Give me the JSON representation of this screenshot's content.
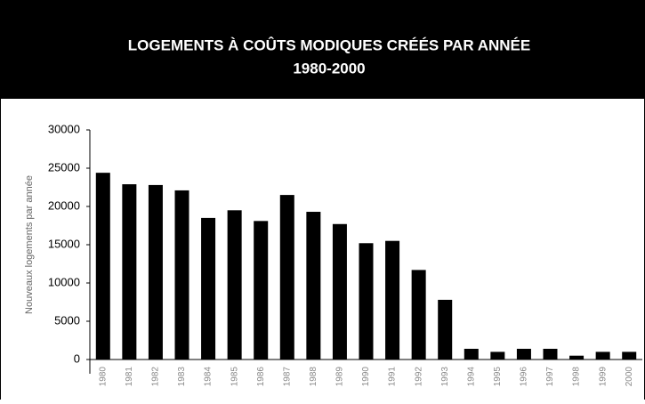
{
  "chart_data": {
    "type": "bar",
    "title": "LOGEMENTS À COÛTS MODIQUES CRÉÉS PAR ANNÉE",
    "subtitle": "1980-2000",
    "y_label": "Nouveaux logements par année",
    "categories": [
      "1980",
      "1981",
      "1982",
      "1983",
      "1984",
      "1985",
      "1986",
      "1987",
      "1988",
      "1989",
      "1990",
      "1991",
      "1992",
      "1993",
      "1994",
      "1995",
      "1996",
      "1997",
      "1998",
      "1999",
      "2000"
    ],
    "values": [
      24400,
      22900,
      22800,
      22100,
      18500,
      19500,
      18100,
      21500,
      19300,
      17700,
      15200,
      15500,
      11700,
      7800,
      1400,
      1000,
      1400,
      1400,
      500,
      1000,
      1000
    ],
    "color": "#000000",
    "ylim": [
      0,
      30000
    ],
    "yticks": [
      0,
      5000,
      10000,
      15000,
      20000,
      25000,
      30000
    ],
    "grid": false
  }
}
